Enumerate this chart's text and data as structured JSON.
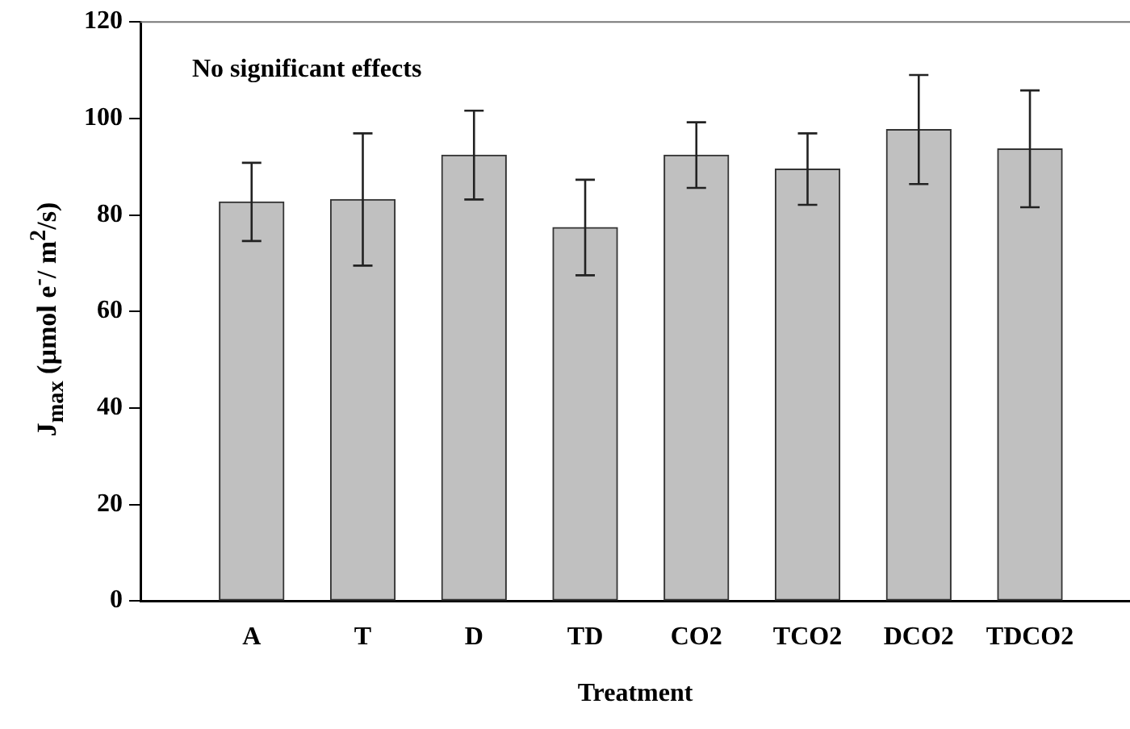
{
  "chart_data": {
    "type": "bar",
    "xlabel": "Treatment",
    "ylabel": "J$_{max}$ (µmol e$^{-}$/ m$^{2}$/s)",
    "categories": [
      "A",
      "T",
      "D",
      "TD",
      "CO2",
      "TCO2",
      "DCO2",
      "TDCO2"
    ],
    "values": [
      82.7,
      83.2,
      92.4,
      77.4,
      92.4,
      89.5,
      97.7,
      93.7
    ],
    "errors": [
      8.1,
      13.7,
      9.2,
      9.9,
      6.8,
      7.4,
      11.3,
      12.1
    ],
    "color": "#c0c0c0",
    "ylim": [
      0,
      120
    ],
    "yticks": [
      0,
      20,
      40,
      60,
      80,
      100,
      120
    ],
    "annotations": [
      "No significant effects"
    ],
    "grid": false,
    "legend": false
  }
}
